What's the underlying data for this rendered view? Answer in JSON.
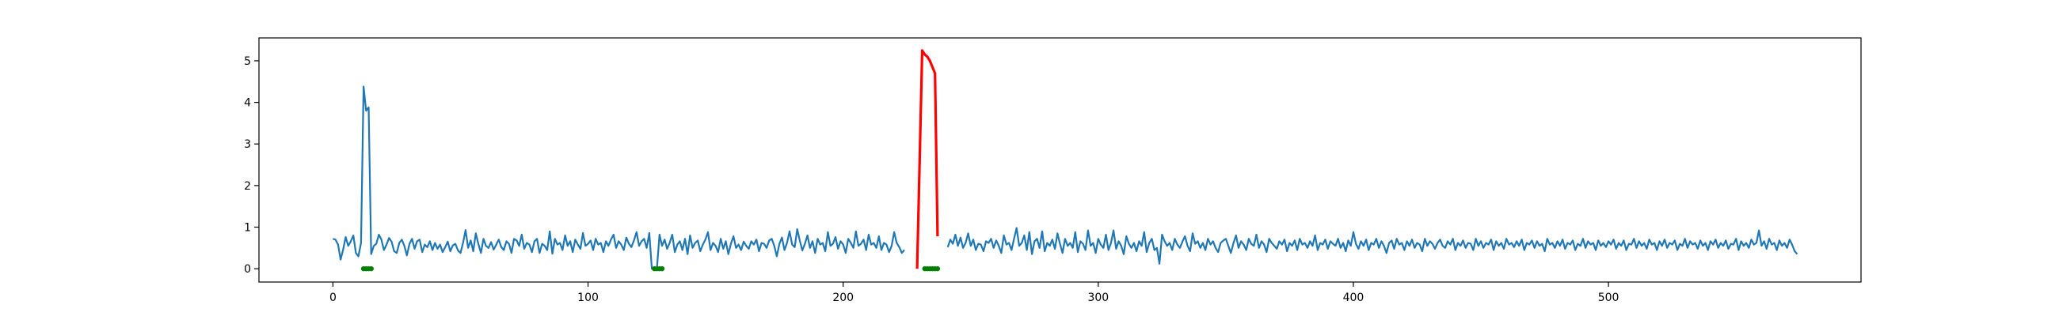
{
  "chart_data": {
    "type": "line",
    "title": "",
    "xlabel": "",
    "ylabel": "",
    "xlim": [
      -29,
      599
    ],
    "ylim": [
      -0.32,
      5.55
    ],
    "x_ticks": [
      0,
      100,
      200,
      300,
      400,
      500
    ],
    "y_ticks": [
      0,
      1,
      2,
      3,
      4,
      5
    ],
    "grid": false,
    "legend": "none",
    "series": [
      {
        "color": "#1f77b4",
        "x_start": 0,
        "x_step": 1,
        "values": [
          0.72,
          0.7,
          0.58,
          0.22,
          0.46,
          0.76,
          0.55,
          0.66,
          0.8,
          0.38,
          0.3,
          0.62,
          4.38,
          3.8,
          3.88,
          0.35,
          0.55,
          0.6,
          0.82,
          0.7,
          0.45,
          0.58,
          0.74,
          0.65,
          0.42,
          0.38,
          0.62,
          0.7,
          0.55,
          0.32,
          0.6,
          0.72,
          0.48,
          0.66,
          0.7,
          0.4,
          0.58,
          0.52,
          0.66,
          0.45,
          0.62,
          0.48,
          0.58,
          0.4,
          0.52,
          0.65,
          0.42,
          0.56,
          0.6,
          0.44,
          0.38,
          0.62,
          0.93,
          0.5,
          0.68,
          0.42,
          0.85,
          0.6,
          0.38,
          0.72,
          0.55,
          0.5,
          0.64,
          0.46,
          0.58,
          0.7,
          0.52,
          0.45,
          0.66,
          0.6,
          0.38,
          0.72,
          0.68,
          0.55,
          0.82,
          0.48,
          0.62,
          0.58,
          0.4,
          0.66,
          0.72,
          0.38,
          0.6,
          0.55,
          0.45,
          0.9,
          0.36,
          0.72,
          0.58,
          0.62,
          0.45,
          0.8,
          0.55,
          0.66,
          0.4,
          0.7,
          0.58,
          0.48,
          0.86,
          0.55,
          0.6,
          0.68,
          0.45,
          0.72,
          0.58,
          0.62,
          0.4,
          0.66,
          0.55,
          0.7,
          0.82,
          0.5,
          0.66,
          0.58,
          0.45,
          0.75,
          0.6,
          0.52,
          0.68,
          0.88,
          0.55,
          0.66,
          0.72,
          0.5,
          0.86,
          0.0,
          0.0,
          0.0,
          0.82,
          0.55,
          0.7,
          0.48,
          0.62,
          0.82,
          0.4,
          0.58,
          0.66,
          0.45,
          0.72,
          0.35,
          0.8,
          0.5,
          0.62,
          0.68,
          0.42,
          0.58,
          0.7,
          0.88,
          0.45,
          0.62,
          0.55,
          0.4,
          0.72,
          0.48,
          0.66,
          0.35,
          0.6,
          0.78,
          0.5,
          0.58,
          0.45,
          0.65,
          0.55,
          0.48,
          0.66,
          0.58,
          0.7,
          0.42,
          0.62,
          0.6,
          0.5,
          0.68,
          0.72,
          0.55,
          0.3,
          0.6,
          0.75,
          0.45,
          0.62,
          0.9,
          0.58,
          0.52,
          0.95,
          0.68,
          0.44,
          0.6,
          0.8,
          0.5,
          0.66,
          0.38,
          0.72,
          0.58,
          0.62,
          0.42,
          0.88,
          0.55,
          0.6,
          0.76,
          0.48,
          0.66,
          0.58,
          0.38,
          0.72,
          0.62,
          0.5,
          0.9,
          0.55,
          0.6,
          0.7,
          0.45,
          0.82,
          0.58,
          0.62,
          0.5,
          0.78,
          0.45,
          0.62,
          0.58,
          0.4,
          0.55,
          0.88,
          0.62,
          0.52,
          0.38,
          0.45
        ],
        "segments": [
          {
            "x_start": 241,
            "values": [
              0.52,
              0.7,
              0.6,
              0.82,
              0.55,
              0.75,
              0.5,
              0.62,
              0.85,
              0.55,
              0.7,
              0.45,
              0.6,
              0.58,
              0.42,
              0.66,
              0.62,
              0.72,
              0.5,
              0.68,
              0.55,
              0.38,
              0.8,
              0.58,
              0.62,
              0.45,
              0.72,
              0.98,
              0.55,
              0.62,
              0.8,
              0.45,
              0.88,
              0.35,
              0.66,
              0.72,
              0.5,
              0.9,
              0.42,
              0.62,
              0.55,
              0.7,
              0.48,
              0.85,
              0.6,
              0.38,
              0.72,
              0.55,
              0.62,
              0.5,
              0.88,
              0.4,
              0.66,
              0.6,
              0.45,
              0.92,
              0.55,
              0.62,
              0.38,
              0.72,
              0.58,
              0.5,
              0.82,
              0.45,
              0.62,
              0.92,
              0.48,
              0.66,
              0.55,
              0.35,
              0.78,
              0.6,
              0.5,
              0.62,
              0.42,
              0.66,
              0.55,
              0.88,
              0.4,
              0.62,
              0.72,
              0.45,
              0.5,
              0.12,
              0.82,
              0.66,
              0.55,
              0.62,
              0.45,
              0.72,
              0.58,
              0.5,
              0.65,
              0.78,
              0.55,
              0.42,
              0.85,
              0.6,
              0.66,
              0.5,
              0.62,
              0.45,
              0.72,
              0.58,
              0.66,
              0.5,
              0.4,
              0.62,
              0.68,
              0.72,
              0.55,
              0.38,
              0.62,
              0.8,
              0.5,
              0.66,
              0.58,
              0.45,
              0.72,
              0.6,
              0.55,
              0.82,
              0.5,
              0.66,
              0.58,
              0.4,
              0.72,
              0.62,
              0.55,
              0.48,
              0.66,
              0.58,
              0.7,
              0.42,
              0.62,
              0.55,
              0.68,
              0.45,
              0.72,
              0.58,
              0.62,
              0.5,
              0.66,
              0.55,
              0.8,
              0.45,
              0.62,
              0.58,
              0.7,
              0.48,
              0.66,
              0.6,
              0.55,
              0.72,
              0.5,
              0.62,
              0.42,
              0.68,
              0.55,
              0.88,
              0.6,
              0.48,
              0.66,
              0.55,
              0.7,
              0.45,
              0.62,
              0.58,
              0.72,
              0.5,
              0.66,
              0.55,
              0.38,
              0.62,
              0.68,
              0.48,
              0.72,
              0.58,
              0.62,
              0.45,
              0.66,
              0.55,
              0.7,
              0.5,
              0.62,
              0.58,
              0.42,
              0.72,
              0.55,
              0.66,
              0.6,
              0.48,
              0.62,
              0.7,
              0.55,
              0.5,
              0.66,
              0.58,
              0.72,
              0.45,
              0.62,
              0.55,
              0.68,
              0.5,
              0.62,
              0.6,
              0.45,
              0.72,
              0.55,
              0.66,
              0.5,
              0.62,
              0.58,
              0.7,
              0.45,
              0.66,
              0.55,
              0.62,
              0.48,
              0.72,
              0.58,
              0.62,
              0.52,
              0.66,
              0.55,
              0.7,
              0.45,
              0.62,
              0.58,
              0.68,
              0.5,
              0.66,
              0.55,
              0.6,
              0.42,
              0.72,
              0.58,
              0.62,
              0.5,
              0.66,
              0.55,
              0.7,
              0.48,
              0.62,
              0.58,
              0.68,
              0.45,
              0.6,
              0.55,
              0.72,
              0.5,
              0.66,
              0.58,
              0.62,
              0.45,
              0.68,
              0.55,
              0.62,
              0.52,
              0.66,
              0.58,
              0.7,
              0.48,
              0.62,
              0.55,
              0.68,
              0.45,
              0.6,
              0.58,
              0.72,
              0.5,
              0.66,
              0.55,
              0.62,
              0.48,
              0.7,
              0.58,
              0.62,
              0.45,
              0.66,
              0.55,
              0.7,
              0.5,
              0.62,
              0.58,
              0.68,
              0.45,
              0.6,
              0.55,
              0.72,
              0.5,
              0.66,
              0.58,
              0.62,
              0.48,
              0.68,
              0.55,
              0.62,
              0.45,
              0.66,
              0.58,
              0.7,
              0.5,
              0.62,
              0.55,
              0.68,
              0.48,
              0.6,
              0.58,
              0.72,
              0.45,
              0.66,
              0.55,
              0.62,
              0.5,
              0.7,
              0.58,
              0.62,
              0.92,
              0.55,
              0.66,
              0.48,
              0.72,
              0.58,
              0.62,
              0.45,
              0.68,
              0.55,
              0.62,
              0.5,
              0.7,
              0.58,
              0.42,
              0.35
            ]
          }
        ]
      },
      {
        "color": "#ff0000",
        "points": [
          [
            229,
            0.0
          ],
          [
            230,
            2.6
          ],
          [
            231,
            5.25
          ],
          [
            232,
            5.15
          ],
          [
            233,
            5.1
          ],
          [
            234,
            5.0
          ],
          [
            235,
            4.85
          ],
          [
            236,
            4.7
          ],
          [
            237,
            0.78
          ]
        ]
      }
    ],
    "markers": {
      "color": "#008000",
      "points": [
        [
          12,
          0.0
        ],
        [
          13,
          0.0
        ],
        [
          14,
          0.0
        ],
        [
          15,
          0.0
        ],
        [
          126,
          0.0
        ],
        [
          127,
          0.0
        ],
        [
          128,
          0.0
        ],
        [
          129,
          0.0
        ],
        [
          232,
          0.0
        ],
        [
          233,
          0.0
        ],
        [
          234,
          0.0
        ],
        [
          235,
          0.0
        ],
        [
          236,
          0.0
        ],
        [
          237,
          0.0
        ]
      ]
    }
  }
}
